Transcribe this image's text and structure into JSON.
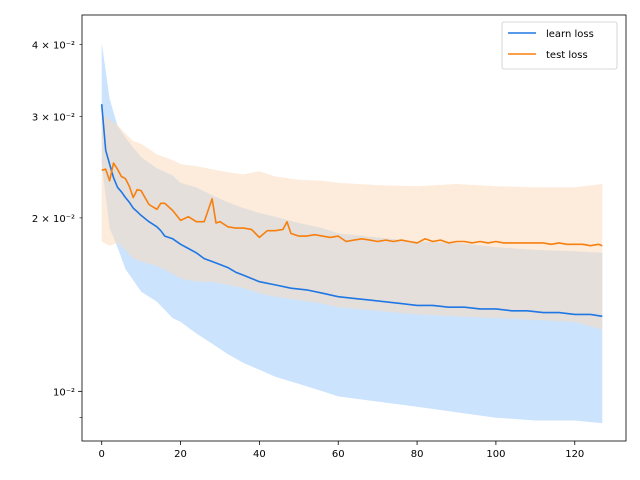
{
  "chart_data": {
    "type": "line",
    "title": "",
    "xlabel": "",
    "ylabel": "",
    "y_scale": "log",
    "xlim": [
      -5,
      133
    ],
    "ylim": [
      0.0082,
      0.045
    ],
    "grid": false,
    "legend_position": "top-right",
    "x_ticks": [
      0,
      20,
      40,
      60,
      80,
      100,
      120
    ],
    "x_tick_labels": [
      "0",
      "20",
      "40",
      "60",
      "80",
      "100",
      "120"
    ],
    "y_major_ticks": [
      0.01
    ],
    "y_minor_ticks": [
      0.02,
      0.03,
      0.04
    ],
    "y_tick_labels": [
      "10⁻²",
      "2 × 10⁻²",
      "3 × 10⁻²",
      "4 × 10⁻²"
    ],
    "series": [
      {
        "name": "learn loss",
        "color": "#1f77e4",
        "band_color": "#a9d1fb",
        "points": [
          [
            0,
            0.0315
          ],
          [
            1,
            0.0262
          ],
          [
            2,
            0.0248
          ],
          [
            3,
            0.0235
          ],
          [
            4,
            0.0226
          ],
          [
            5,
            0.0222
          ],
          [
            6,
            0.0217
          ],
          [
            7,
            0.0213
          ],
          [
            8,
            0.0208
          ],
          [
            9,
            0.0205
          ],
          [
            10,
            0.0202
          ],
          [
            12,
            0.0197
          ],
          [
            14,
            0.0193
          ],
          [
            15,
            0.019
          ],
          [
            16,
            0.0186
          ],
          [
            18,
            0.0184
          ],
          [
            20,
            0.018
          ],
          [
            22,
            0.0177
          ],
          [
            24,
            0.0174
          ],
          [
            26,
            0.017
          ],
          [
            28,
            0.0168
          ],
          [
            30,
            0.0166
          ],
          [
            32,
            0.0164
          ],
          [
            34,
            0.0161
          ],
          [
            36,
            0.0159
          ],
          [
            38,
            0.0157
          ],
          [
            40,
            0.0155
          ],
          [
            44,
            0.0153
          ],
          [
            48,
            0.0151
          ],
          [
            52,
            0.015
          ],
          [
            56,
            0.0148
          ],
          [
            60,
            0.0146
          ],
          [
            64,
            0.0145
          ],
          [
            68,
            0.0144
          ],
          [
            72,
            0.0143
          ],
          [
            76,
            0.0142
          ],
          [
            80,
            0.0141
          ],
          [
            84,
            0.0141
          ],
          [
            88,
            0.014
          ],
          [
            92,
            0.014
          ],
          [
            96,
            0.0139
          ],
          [
            100,
            0.0139
          ],
          [
            104,
            0.0138
          ],
          [
            108,
            0.0138
          ],
          [
            112,
            0.0137
          ],
          [
            116,
            0.0137
          ],
          [
            120,
            0.0136
          ],
          [
            124,
            0.0136
          ],
          [
            127,
            0.0135
          ]
        ],
        "band_upper": [
          [
            0,
            0.0403
          ],
          [
            2,
            0.0322
          ],
          [
            4,
            0.0289
          ],
          [
            6,
            0.0276
          ],
          [
            8,
            0.0265
          ],
          [
            10,
            0.0255
          ],
          [
            14,
            0.0244
          ],
          [
            18,
            0.0237
          ],
          [
            20,
            0.023
          ],
          [
            24,
            0.0226
          ],
          [
            28,
            0.0219
          ],
          [
            32,
            0.0213
          ],
          [
            36,
            0.0208
          ],
          [
            40,
            0.0204
          ],
          [
            44,
            0.0201
          ],
          [
            50,
            0.0196
          ],
          [
            56,
            0.0192
          ],
          [
            60,
            0.0188
          ],
          [
            70,
            0.0185
          ],
          [
            80,
            0.0182
          ],
          [
            90,
            0.0181
          ],
          [
            100,
            0.0178
          ],
          [
            110,
            0.0176
          ],
          [
            120,
            0.0175
          ],
          [
            127,
            0.0174
          ]
        ],
        "band_lower": [
          [
            0,
            0.0248
          ],
          [
            2,
            0.0192
          ],
          [
            4,
            0.0178
          ],
          [
            6,
            0.0163
          ],
          [
            8,
            0.0156
          ],
          [
            10,
            0.0149
          ],
          [
            14,
            0.0143
          ],
          [
            18,
            0.0134
          ],
          [
            20,
            0.0132
          ],
          [
            24,
            0.0126
          ],
          [
            28,
            0.0121
          ],
          [
            32,
            0.0116
          ],
          [
            36,
            0.0112
          ],
          [
            40,
            0.0109
          ],
          [
            44,
            0.0106
          ],
          [
            50,
            0.0103
          ],
          [
            56,
            0.01
          ],
          [
            60,
            0.0098
          ],
          [
            70,
            0.0096
          ],
          [
            80,
            0.0094
          ],
          [
            90,
            0.0092
          ],
          [
            100,
            0.009
          ],
          [
            110,
            0.0089
          ],
          [
            120,
            0.0089
          ],
          [
            127,
            0.0088
          ]
        ]
      },
      {
        "name": "test loss",
        "color": "#f77f0e",
        "band_color": "#fcdcc0",
        "points": [
          [
            0,
            0.0242
          ],
          [
            1,
            0.0243
          ],
          [
            2,
            0.0232
          ],
          [
            3,
            0.0249
          ],
          [
            4,
            0.0243
          ],
          [
            5,
            0.0236
          ],
          [
            6,
            0.0234
          ],
          [
            7,
            0.0227
          ],
          [
            8,
            0.0217
          ],
          [
            9,
            0.0224
          ],
          [
            10,
            0.0223
          ],
          [
            12,
            0.0211
          ],
          [
            14,
            0.0207
          ],
          [
            15,
            0.0212
          ],
          [
            16,
            0.0212
          ],
          [
            18,
            0.0206
          ],
          [
            20,
            0.0198
          ],
          [
            22,
            0.0201
          ],
          [
            24,
            0.0197
          ],
          [
            26,
            0.0197
          ],
          [
            28,
            0.0216
          ],
          [
            29,
            0.0196
          ],
          [
            30,
            0.0197
          ],
          [
            32,
            0.0193
          ],
          [
            34,
            0.0192
          ],
          [
            36,
            0.0192
          ],
          [
            38,
            0.0191
          ],
          [
            40,
            0.0185
          ],
          [
            42,
            0.019
          ],
          [
            44,
            0.019
          ],
          [
            46,
            0.0191
          ],
          [
            47,
            0.0197
          ],
          [
            48,
            0.0188
          ],
          [
            50,
            0.0186
          ],
          [
            52,
            0.0186
          ],
          [
            54,
            0.0187
          ],
          [
            56,
            0.0186
          ],
          [
            58,
            0.0185
          ],
          [
            60,
            0.0186
          ],
          [
            62,
            0.0182
          ],
          [
            64,
            0.0183
          ],
          [
            66,
            0.0184
          ],
          [
            68,
            0.0183
          ],
          [
            70,
            0.0182
          ],
          [
            72,
            0.0183
          ],
          [
            74,
            0.0182
          ],
          [
            76,
            0.0183
          ],
          [
            78,
            0.0182
          ],
          [
            80,
            0.0181
          ],
          [
            82,
            0.0184
          ],
          [
            84,
            0.0182
          ],
          [
            86,
            0.0183
          ],
          [
            88,
            0.0181
          ],
          [
            90,
            0.0182
          ],
          [
            92,
            0.0182
          ],
          [
            94,
            0.0181
          ],
          [
            96,
            0.0182
          ],
          [
            98,
            0.0181
          ],
          [
            100,
            0.0182
          ],
          [
            102,
            0.0181
          ],
          [
            104,
            0.0181
          ],
          [
            106,
            0.0181
          ],
          [
            108,
            0.0181
          ],
          [
            110,
            0.0181
          ],
          [
            112,
            0.0181
          ],
          [
            114,
            0.018
          ],
          [
            116,
            0.0181
          ],
          [
            118,
            0.018
          ],
          [
            120,
            0.018
          ],
          [
            122,
            0.018
          ],
          [
            124,
            0.0179
          ],
          [
            126,
            0.018
          ],
          [
            127,
            0.0179
          ]
        ],
        "band_upper": [
          [
            0,
            0.0305
          ],
          [
            2,
            0.0296
          ],
          [
            4,
            0.029
          ],
          [
            6,
            0.028
          ],
          [
            8,
            0.0272
          ],
          [
            10,
            0.0269
          ],
          [
            14,
            0.0258
          ],
          [
            18,
            0.0252
          ],
          [
            20,
            0.0248
          ],
          [
            24,
            0.0246
          ],
          [
            28,
            0.0243
          ],
          [
            32,
            0.024
          ],
          [
            36,
            0.0238
          ],
          [
            40,
            0.0241
          ],
          [
            44,
            0.0236
          ],
          [
            50,
            0.0233
          ],
          [
            56,
            0.0232
          ],
          [
            60,
            0.023
          ],
          [
            70,
            0.0228
          ],
          [
            80,
            0.0227
          ],
          [
            90,
            0.0229
          ],
          [
            100,
            0.0227
          ],
          [
            110,
            0.0226
          ],
          [
            120,
            0.0226
          ],
          [
            127,
            0.0229
          ]
        ],
        "band_lower": [
          [
            0,
            0.0182
          ],
          [
            2,
            0.0179
          ],
          [
            4,
            0.0181
          ],
          [
            6,
            0.0176
          ],
          [
            8,
            0.017
          ],
          [
            10,
            0.0168
          ],
          [
            14,
            0.0165
          ],
          [
            18,
            0.016
          ],
          [
            20,
            0.0157
          ],
          [
            24,
            0.0155
          ],
          [
            28,
            0.0155
          ],
          [
            32,
            0.0153
          ],
          [
            36,
            0.0151
          ],
          [
            40,
            0.0148
          ],
          [
            44,
            0.0146
          ],
          [
            50,
            0.0144
          ],
          [
            56,
            0.0142
          ],
          [
            60,
            0.014
          ],
          [
            70,
            0.0138
          ],
          [
            80,
            0.0136
          ],
          [
            90,
            0.0135
          ],
          [
            100,
            0.0134
          ],
          [
            110,
            0.0133
          ],
          [
            120,
            0.0132
          ],
          [
            127,
            0.0128
          ]
        ]
      }
    ]
  }
}
